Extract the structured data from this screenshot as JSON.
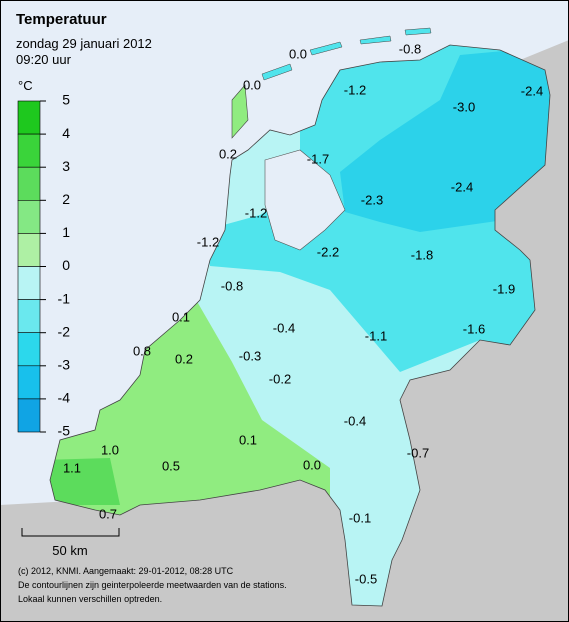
{
  "header": {
    "title": "Temperatuur",
    "date": "zondag 29 januari 2012",
    "time": "09:20 uur"
  },
  "legend": {
    "unit": "°C",
    "ticks": [
      5,
      4,
      3,
      2,
      1,
      0,
      -1,
      -2,
      -3,
      -4,
      -5
    ],
    "colors": [
      "#1ec81e",
      "#3ad43a",
      "#5cdc5c",
      "#84e884",
      "#aef0a4",
      "#b8f4f4",
      "#6ae8ee",
      "#2cd8ec",
      "#18c0ec",
      "#10a4e4"
    ]
  },
  "stations": [
    "0.0",
    "-0.8",
    "0.0",
    "-1.2",
    "-2.4",
    "-3.0",
    "0.2",
    "-1.7",
    "-2.3",
    "-2.4",
    "-1.2",
    "-1.2",
    "-2.2",
    "-1.8",
    "-1.9",
    "-0.8",
    "0.1",
    "-0.4",
    "-1.6",
    "-1.1",
    "0.8",
    "0.2",
    "-0.3",
    "-0.2",
    "-0.4",
    "1.0",
    "0.1",
    "-0.7",
    "1.1",
    "0.5",
    "0.0",
    "0.7",
    "-0.1",
    "-0.5"
  ],
  "scale": "50 km",
  "footer": [
    "(c) 2012, KNMI. Aangemaakt: 29-01-2012, 08:28 UTC",
    "De contourlijnen zijn geinterpoleerde meetwaarden van de stations.",
    "Lokaal kunnen verschillen optreden."
  ]
}
